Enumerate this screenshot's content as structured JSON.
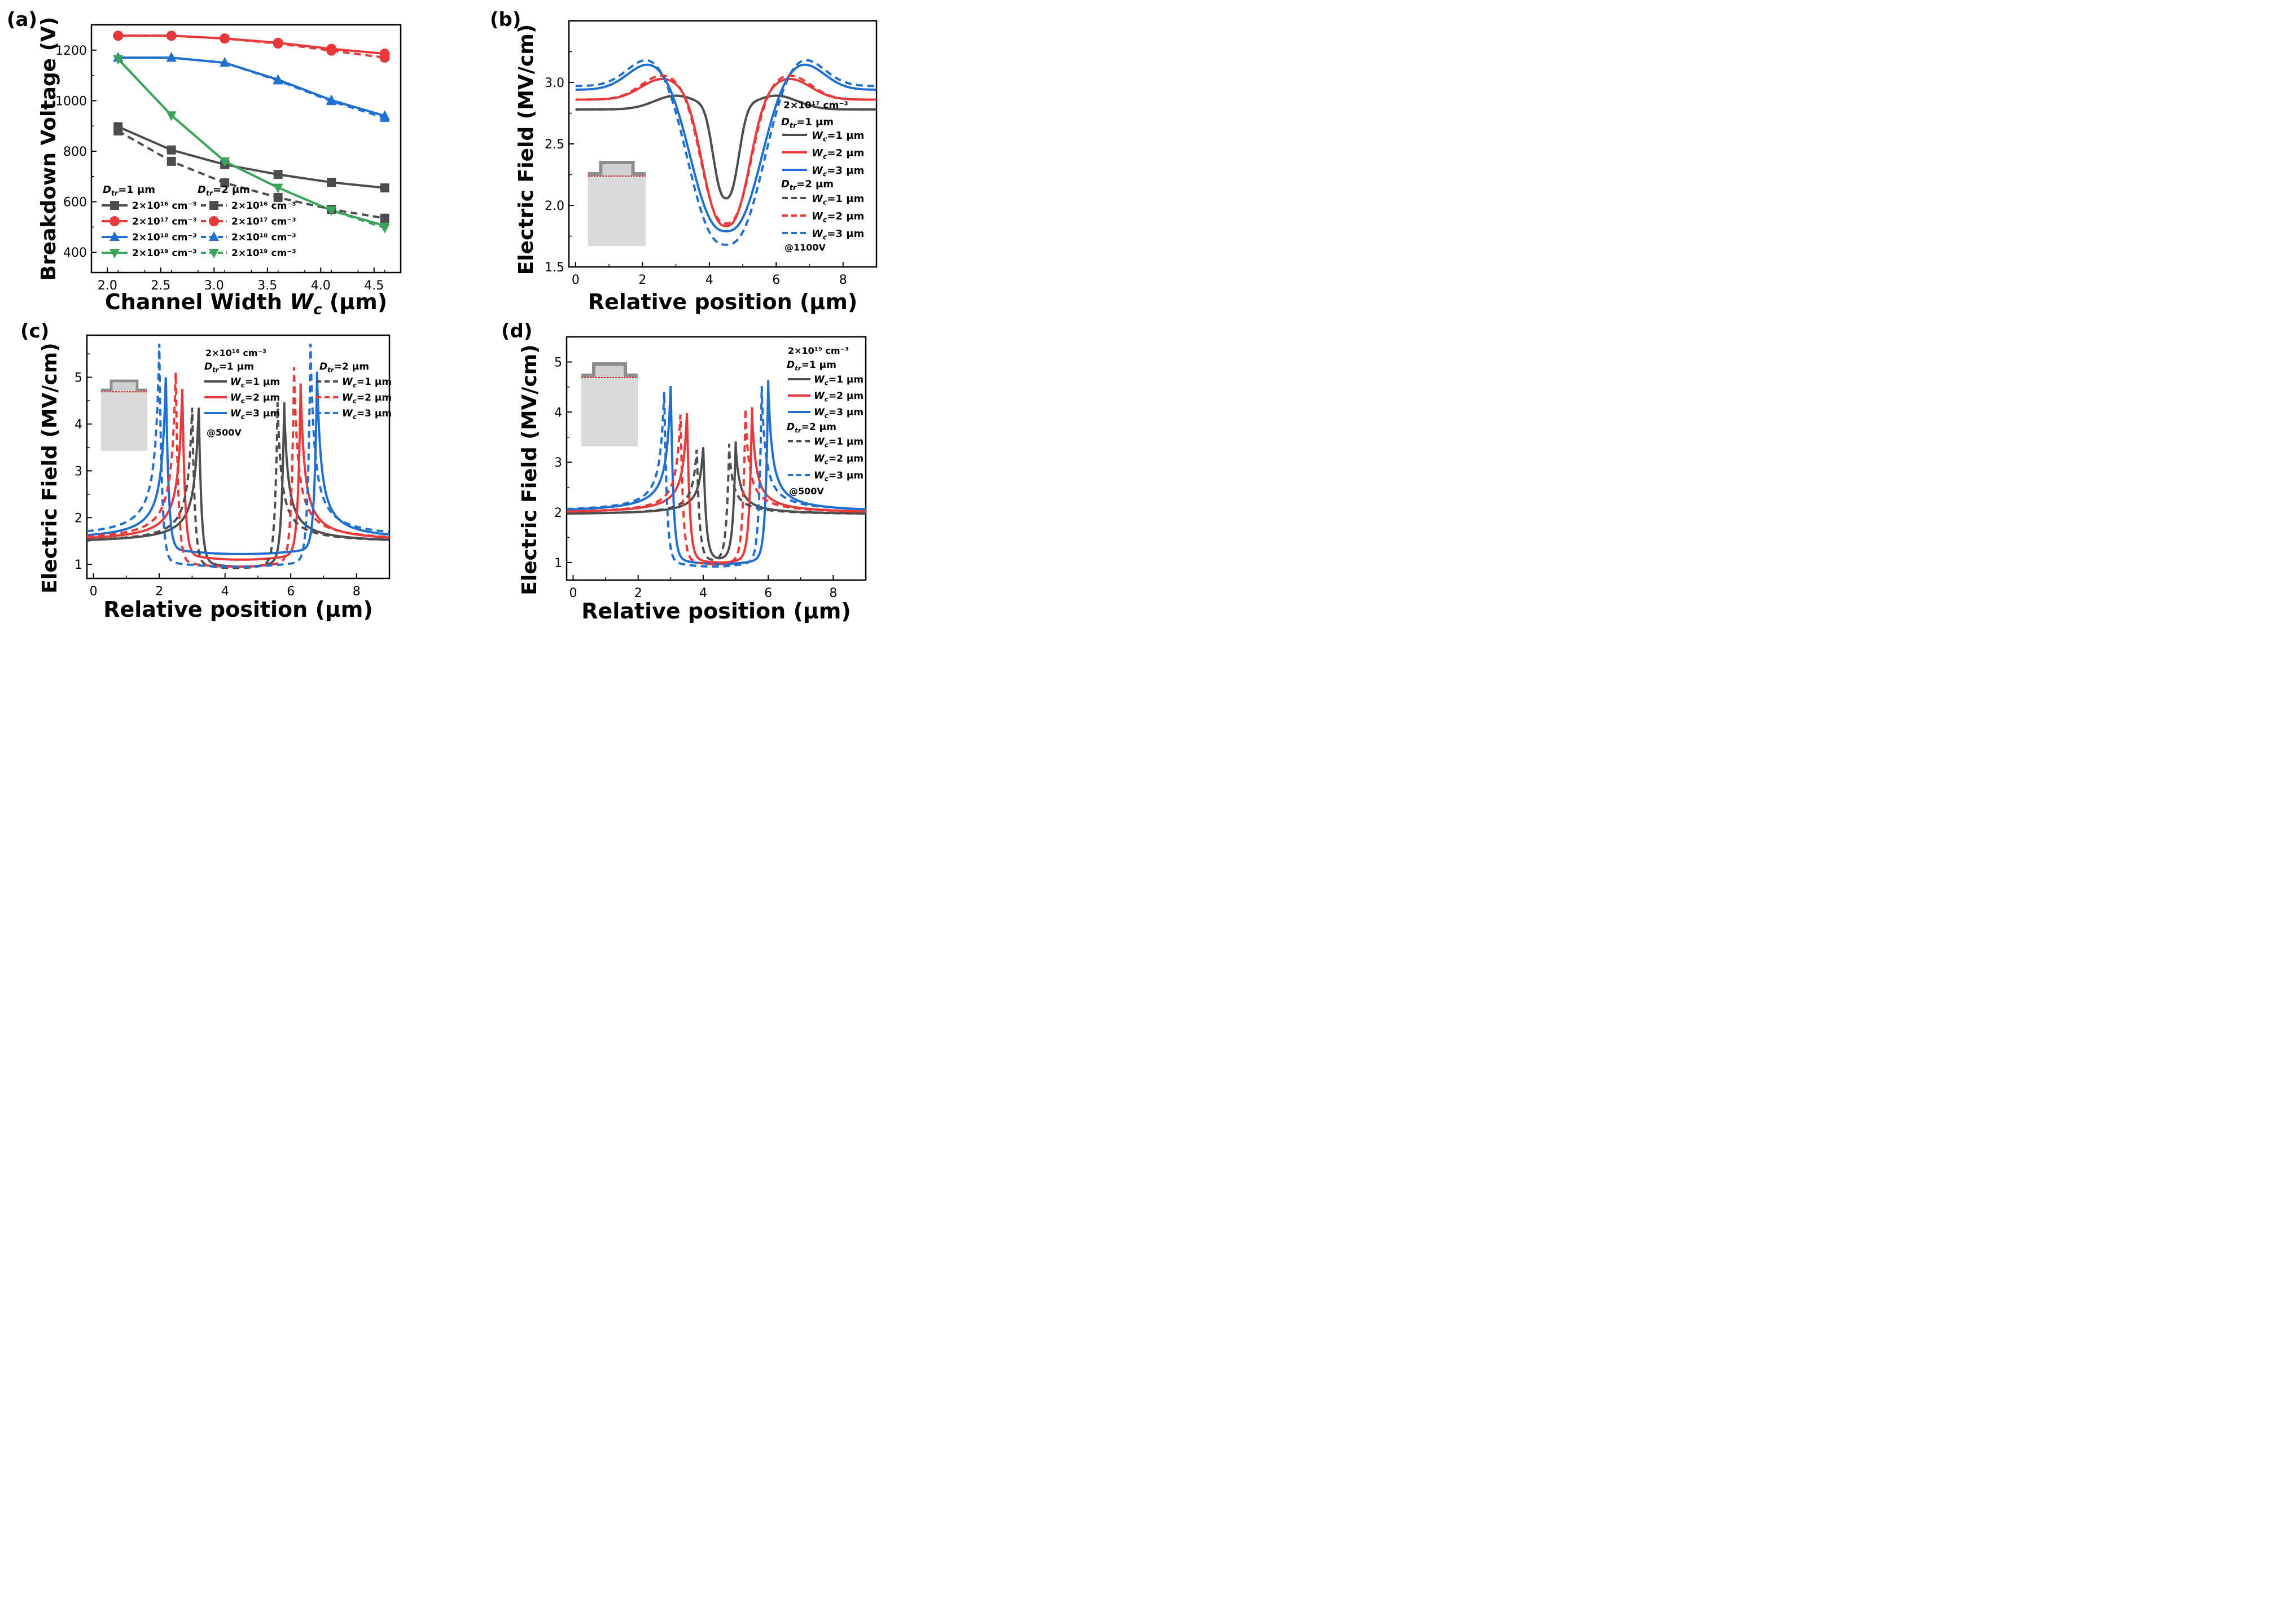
{
  "chart_data": [
    {
      "panel": "(a)",
      "type": "line",
      "xlabel": "Channel Width",
      "xlabel_sym": "W",
      "xlabel_sub": "c",
      "xlabel_unit": "(μm)",
      "ylabel": "Breakdown Voltage (V)",
      "xlim": [
        1.85,
        4.75
      ],
      "ylim": [
        320,
        1300
      ],
      "xticks": [
        "2.0",
        "2.5",
        "3.0",
        "3.5",
        "4.0",
        "4.5"
      ],
      "yticks": [
        "400",
        "600",
        "800",
        "1000",
        "1200"
      ],
      "x": [
        2.1,
        2.6,
        3.1,
        3.6,
        4.1,
        4.6
      ],
      "legend": {
        "group1": "D",
        "group1_sub": "tr",
        "group1_rest": "=1 μm",
        "group2": "D",
        "group2_sub": "tr",
        "group2_rest": "=2 μm"
      },
      "series": [
        {
          "name": "2×10¹⁶ cm⁻³",
          "dtr": "1 μm",
          "color": "#4d4d4d",
          "dash": false,
          "marker": "square",
          "values": [
            897,
            805,
            747,
            708,
            677,
            655
          ]
        },
        {
          "name": "2×10¹⁷ cm⁻³",
          "dtr": "1 μm",
          "color": "#e8393a",
          "dash": false,
          "marker": "circle",
          "values": [
            1257,
            1257,
            1246,
            1229,
            1205,
            1186
          ]
        },
        {
          "name": "2×10¹⁸ cm⁻³",
          "dtr": "1 μm",
          "color": "#1f6fd1",
          "dash": false,
          "marker": "triangle-up",
          "values": [
            1170,
            1170,
            1150,
            1083,
            1002,
            940
          ]
        },
        {
          "name": "2×10¹⁹ cm⁻³",
          "dtr": "1 μm",
          "color": "#3aa55a",
          "dash": false,
          "marker": "triangle-down",
          "values": [
            1165,
            942,
            760,
            656,
            566,
            505
          ]
        },
        {
          "name": "2×10¹⁶ cm⁻³",
          "dtr": "2 μm",
          "color": "#4d4d4d",
          "dash": true,
          "marker": "square",
          "values": [
            880,
            760,
            675,
            617,
            570,
            535
          ]
        },
        {
          "name": "2×10¹⁷ cm⁻³",
          "dtr": "2 μm",
          "color": "#e8393a",
          "dash": true,
          "marker": "circle",
          "values": [
            1257,
            1257,
            1246,
            1226,
            1198,
            1170
          ]
        },
        {
          "name": "2×10¹⁸ cm⁻³",
          "dtr": "2 μm",
          "color": "#1f6fd1",
          "dash": true,
          "marker": "triangle-up",
          "values": [
            1170,
            1170,
            1150,
            1080,
            998,
            932
          ]
        },
        {
          "name": "2×10¹⁹ cm⁻³",
          "dtr": "2 μm",
          "color": "#3aa55a",
          "dash": true,
          "marker": "triangle-down",
          "values": [
            1165,
            942,
            760,
            656,
            566,
            497
          ]
        }
      ]
    },
    {
      "panel": "(b)",
      "type": "line",
      "xlabel": "Relative position (μm)",
      "ylabel": "Electric Field (MV/cm)",
      "xlim": [
        -0.2,
        9
      ],
      "ylim": [
        1.5,
        3.5
      ],
      "xticks": [
        "0",
        "2",
        "4",
        "6",
        "8"
      ],
      "yticks": [
        "1.5",
        "2.0",
        "2.5",
        "3.0"
      ],
      "annotation": {
        "doping": "2×10¹⁷ cm⁻³",
        "bias": "@1100V"
      },
      "legend_groups": [
        "D_tr=1 μm",
        "D_tr=2 μm"
      ],
      "series": [
        {
          "name": "Wc=1 μm",
          "dtr": "1 μm",
          "color": "#4d4d4d",
          "dash": false,
          "valley_center": 4.5,
          "valley_min": 2.05,
          "valley_halfwidth": 0.55,
          "base": 2.78,
          "peak": 2.86,
          "peak_pos": 3.0
        },
        {
          "name": "Wc=2 μm",
          "dtr": "1 μm",
          "color": "#e8393a",
          "dash": false,
          "valley_center": 4.5,
          "valley_min": 1.83,
          "valley_halfwidth": 1.0,
          "base": 2.86,
          "peak": 2.98,
          "peak_pos": 2.6
        },
        {
          "name": "Wc=3 μm",
          "dtr": "1 μm",
          "color": "#1f6fd1",
          "dash": false,
          "valley_center": 4.5,
          "valley_min": 1.79,
          "valley_halfwidth": 1.45,
          "base": 2.94,
          "peak": 3.09,
          "peak_pos": 2.2
        },
        {
          "name": "Wc=1 μm",
          "dtr": "2 μm",
          "color": "#4d4d4d",
          "dash": true,
          "valley_center": 4.5,
          "valley_min": 2.05,
          "valley_halfwidth": 0.55,
          "base": 2.78,
          "peak": 2.86,
          "peak_pos": 3.0
        },
        {
          "name": "Wc=2 μm",
          "dtr": "2 μm",
          "color": "#e8393a",
          "dash": true,
          "valley_center": 4.5,
          "valley_min": 1.85,
          "valley_halfwidth": 1.05,
          "base": 2.86,
          "peak": 3.0,
          "peak_pos": 2.6
        },
        {
          "name": "Wc=3 μm",
          "dtr": "2 μm",
          "color": "#1f6fd1",
          "dash": true,
          "valley_center": 4.5,
          "valley_min": 1.68,
          "valley_halfwidth": 1.55,
          "base": 2.97,
          "peak": 3.13,
          "peak_pos": 2.2
        }
      ]
    },
    {
      "panel": "(c)",
      "type": "line",
      "xlabel": "Relative position (μm)",
      "ylabel": "Electric Field (MV/cm)",
      "xlim": [
        -0.2,
        9
      ],
      "ylim": [
        0.7,
        5.9
      ],
      "xticks": [
        "0",
        "2",
        "4",
        "6",
        "8"
      ],
      "yticks": [
        "1",
        "2",
        "3",
        "4",
        "5"
      ],
      "annotation": {
        "doping": "2×10¹⁶ cm⁻³",
        "bias": "@500V"
      },
      "legend_groups": [
        "D_tr=1 μm",
        "D_tr=2 μm"
      ],
      "series": [
        {
          "name": "Wc=1 μm",
          "dtr": "1 μm",
          "color": "#4d4d4d",
          "dash": false,
          "peaks": [
            3.2,
            5.8
          ],
          "peak": 4.35,
          "base": 1.45,
          "mid": 0.95
        },
        {
          "name": "Wc=2 μm",
          "dtr": "1 μm",
          "color": "#e8393a",
          "dash": false,
          "peaks": [
            2.7,
            6.3
          ],
          "peak": 4.75,
          "base": 1.47,
          "mid": 1.1
        },
        {
          "name": "Wc=3 μm",
          "dtr": "1 μm",
          "color": "#1f6fd1",
          "dash": false,
          "peaks": [
            2.2,
            6.8
          ],
          "peak": 5.0,
          "base": 1.5,
          "mid": 1.22
        },
        {
          "name": "Wc=1 μm",
          "dtr": "2 μm",
          "color": "#4d4d4d",
          "dash": true,
          "peaks": [
            3.0,
            5.6
          ],
          "peak": 4.35,
          "base": 1.45,
          "mid": 0.92
        },
        {
          "name": "Wc=2 μm",
          "dtr": "2 μm",
          "color": "#e8393a",
          "dash": true,
          "peaks": [
            2.5,
            6.1
          ],
          "peak": 5.1,
          "base": 1.48,
          "mid": 0.95
        },
        {
          "name": "Wc=3 μm",
          "dtr": "2 μm",
          "color": "#1f6fd1",
          "dash": true,
          "peaks": [
            2.0,
            6.6
          ],
          "peak": 5.6,
          "base": 1.55,
          "mid": 0.95
        }
      ]
    },
    {
      "panel": "(d)",
      "type": "line",
      "xlabel": "Relative position (μm)",
      "ylabel": "Electric Field (MV/cm)",
      "xlim": [
        -0.2,
        9
      ],
      "ylim": [
        0.65,
        5.5
      ],
      "xticks": [
        "0",
        "2",
        "4",
        "6",
        "8"
      ],
      "yticks": [
        "1",
        "2",
        "3",
        "4",
        "5"
      ],
      "annotation": {
        "doping": "2×10¹⁹ cm⁻³",
        "bias": "@500V"
      },
      "legend_groups": [
        "D_tr=1 μm",
        "D_tr=2 μm"
      ],
      "series": [
        {
          "name": "Wc=1 μm",
          "dtr": "1 μm",
          "color": "#4d4d4d",
          "dash": false,
          "peaks": [
            4.0,
            5.0
          ],
          "peak": 3.3,
          "base": 1.95,
          "mid": 1.08
        },
        {
          "name": "Wc=2 μm",
          "dtr": "1 μm",
          "color": "#e8393a",
          "dash": false,
          "peaks": [
            3.5,
            5.5
          ],
          "peak": 3.98,
          "base": 1.97,
          "mid": 1.0
        },
        {
          "name": "Wc=3 μm",
          "dtr": "1 μm",
          "color": "#1f6fd1",
          "dash": false,
          "peaks": [
            3.0,
            6.0
          ],
          "peak": 4.52,
          "base": 1.99,
          "mid": 0.97
        },
        {
          "name": "Wc=1 μm",
          "dtr": "2 μm",
          "color": "#4d4d4d",
          "dash": true,
          "peaks": [
            3.8,
            4.8
          ],
          "peak": 3.25,
          "base": 1.95,
          "mid": 1.05
        },
        {
          "name": "Wc=2 μm",
          "dtr": "2 μm",
          "color": "#e8393a",
          "dash": true,
          "peaks": [
            3.3,
            5.3
          ],
          "peak": 3.95,
          "base": 1.97,
          "mid": 0.97
        },
        {
          "name": "Wc=3 μm",
          "dtr": "2 μm",
          "color": "#1f6fd1",
          "dash": true,
          "peaks": [
            2.8,
            5.8
          ],
          "peak": 4.4,
          "base": 2.0,
          "mid": 0.92
        }
      ]
    }
  ],
  "colors": {
    "gray": "#4d4d4d",
    "red": "#e8393a",
    "blue": "#1f6fd1",
    "green": "#3aa55a"
  }
}
